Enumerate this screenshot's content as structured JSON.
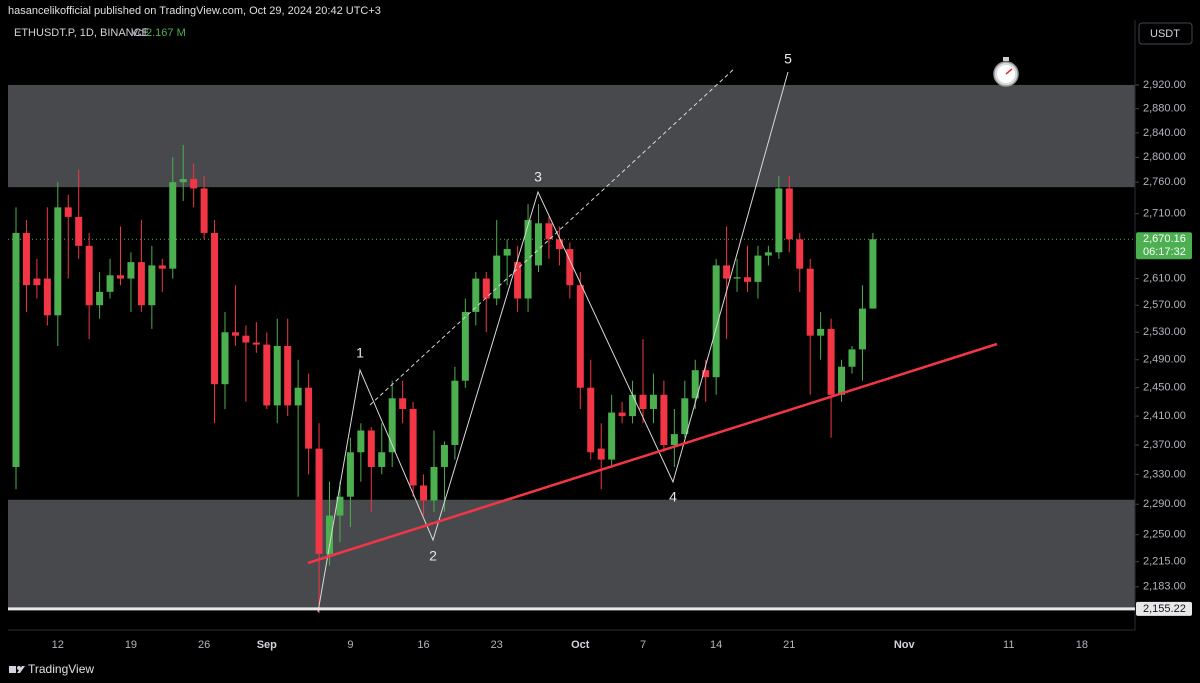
{
  "chart_data": {
    "type": "candlestick",
    "header": "hasancelikofficial published on TradingView.com, Oct 29, 2024 20:42 UTC+3",
    "symbol": "ETHUSDT.P, 1D, BINANCE",
    "vol_label": "Vol",
    "vol_value": "2.167 M",
    "currency": "USDT",
    "brand": "TradingView",
    "log_scale": true,
    "up_color": "#4caf50",
    "down_color": "#f23645",
    "ylim": [
      2129,
      3032
    ],
    "yticks": [
      {
        "value": 2920,
        "label": "2,920.00"
      },
      {
        "value": 2880,
        "label": "2,880.00"
      },
      {
        "value": 2840,
        "label": "2,840.00"
      },
      {
        "value": 2800,
        "label": "2,800.00"
      },
      {
        "value": 2760,
        "label": "2,760.00"
      },
      {
        "value": 2710,
        "label": "2,710.00"
      },
      {
        "value": 2610,
        "label": "2,610.00"
      },
      {
        "value": 2570,
        "label": "2,570.00"
      },
      {
        "value": 2530,
        "label": "2,530.00"
      },
      {
        "value": 2490,
        "label": "2,490.00"
      },
      {
        "value": 2450,
        "label": "2,450.00"
      },
      {
        "value": 2410,
        "label": "2,410.00"
      },
      {
        "value": 2370,
        "label": "2,370.00"
      },
      {
        "value": 2330,
        "label": "2,330.00"
      },
      {
        "value": 2290,
        "label": "2,290.00"
      },
      {
        "value": 2250,
        "label": "2,250.00"
      },
      {
        "value": 2215,
        "label": "2,215.00"
      },
      {
        "value": 2183,
        "label": "2,183.00"
      }
    ],
    "zones": [
      {
        "from": 2752,
        "to": 2920
      },
      {
        "from": 2157,
        "to": 2296
      }
    ],
    "last_price": {
      "value": 2670.16,
      "label": "2,670.16"
    },
    "countdown": "06:17:32",
    "low_price": {
      "value": 2155.22,
      "label": "2,155.22"
    },
    "wave_labels": [
      "1",
      "2",
      "3",
      "4",
      "5"
    ],
    "categories": [
      null,
      null,
      null,
      null,
      "12",
      null,
      null,
      null,
      null,
      null,
      null,
      "19",
      null,
      null,
      null,
      null,
      null,
      null,
      "26",
      null,
      null,
      null,
      null,
      null,
      "Sep",
      null,
      null,
      null,
      null,
      null,
      null,
      null,
      "9",
      null,
      null,
      null,
      null,
      null,
      null,
      "16",
      null,
      null,
      null,
      null,
      null,
      null,
      "23",
      null,
      null,
      null,
      null,
      null,
      null,
      null,
      "Oct",
      null,
      null,
      null,
      null,
      null,
      "7",
      null,
      null,
      null,
      null,
      null,
      null,
      "14",
      null,
      null,
      null,
      null,
      null,
      null,
      "21",
      null,
      null,
      null,
      null,
      null,
      null,
      null,
      null,
      null,
      null,
      "Nov",
      null,
      null,
      null,
      null,
      null,
      null,
      null,
      null,
      null,
      "11",
      null,
      null,
      null,
      null,
      null,
      null,
      "18"
    ],
    "open": [
      2340,
      2680,
      2610,
      2610,
      2555,
      2720,
      2705,
      2660,
      2570,
      2590,
      2615,
      2610,
      2635,
      2570,
      2630,
      2625,
      2760,
      2765,
      2750,
      2680,
      2455,
      2530,
      2525,
      2515,
      2512,
      2425,
      2510,
      2425,
      2450,
      2365,
      2225,
      2275,
      2300,
      2360,
      2390,
      2340,
      2360,
      2435,
      2420,
      2315,
      2295,
      2340,
      2370,
      2460,
      2560,
      2610,
      2580,
      2645,
      2635,
      2580,
      2630,
      2695,
      2670,
      2655,
      2600,
      2450,
      2365,
      2350,
      2415,
      2410,
      2440,
      2420,
      2440,
      2370,
      2385,
      2435,
      2475,
      2465,
      2630,
      2610,
      2612,
      2605,
      2645,
      2650,
      2750,
      2670,
      2625,
      2525,
      2535,
      2440,
      2480,
      2505,
      2565,
      null,
      null,
      null,
      null,
      null,
      null,
      null,
      null,
      null,
      null,
      null,
      null,
      null,
      null,
      null,
      null,
      null,
      null,
      null,
      null
    ],
    "high": [
      2720,
      2700,
      2640,
      2720,
      2760,
      2740,
      2780,
      2680,
      2620,
      2640,
      2690,
      2650,
      2700,
      2660,
      2640,
      2800,
      2820,
      2790,
      2770,
      2700,
      2560,
      2600,
      2540,
      2545,
      2530,
      2550,
      2550,
      2490,
      2470,
      2400,
      2320,
      2320,
      2380,
      2400,
      2395,
      2400,
      2460,
      2460,
      2430,
      2330,
      2390,
      2375,
      2480,
      2580,
      2620,
      2620,
      2700,
      2670,
      2660,
      2725,
      2725,
      2705,
      2690,
      2665,
      2620,
      2490,
      2400,
      2440,
      2430,
      2460,
      2520,
      2470,
      2460,
      2420,
      2460,
      2490,
      2490,
      2640,
      2690,
      2640,
      2660,
      2660,
      2660,
      2770,
      2770,
      2680,
      2640,
      2560,
      2550,
      2490,
      2510,
      2600,
      2680,
      null,
      null,
      null,
      null,
      null,
      null,
      null,
      null,
      null,
      null,
      null,
      null,
      null,
      null,
      null,
      null,
      null,
      null,
      null,
      null
    ],
    "low": [
      2310,
      2560,
      2580,
      2540,
      2510,
      2610,
      2640,
      2520,
      2550,
      2580,
      2600,
      2560,
      2560,
      2535,
      2590,
      2610,
      2730,
      2720,
      2670,
      2400,
      2420,
      2510,
      2430,
      2500,
      2420,
      2400,
      2410,
      2300,
      2330,
      2150,
      2210,
      2240,
      2260,
      2320,
      2280,
      2330,
      2340,
      2400,
      2300,
      2275,
      2280,
      2280,
      2350,
      2450,
      2540,
      2530,
      2570,
      2600,
      2560,
      2560,
      2620,
      2640,
      2630,
      2580,
      2420,
      2350,
      2310,
      2340,
      2400,
      2400,
      2400,
      2400,
      2360,
      2340,
      2380,
      2420,
      2430,
      2440,
      2520,
      2590,
      2590,
      2580,
      2630,
      2640,
      2650,
      2590,
      2440,
      2490,
      2380,
      2430,
      2470,
      2460,
      2565,
      null,
      null,
      null,
      null,
      null,
      null,
      null,
      null,
      null,
      null,
      null,
      null,
      null,
      null,
      null,
      null,
      null,
      null,
      null,
      null
    ],
    "close": [
      2680,
      2600,
      2600,
      2555,
      2720,
      2705,
      2660,
      2570,
      2590,
      2615,
      2610,
      2635,
      2570,
      2630,
      2625,
      2760,
      2765,
      2750,
      2680,
      2455,
      2530,
      2525,
      2515,
      2512,
      2425,
      2510,
      2425,
      2450,
      2365,
      2225,
      2275,
      2300,
      2360,
      2390,
      2340,
      2360,
      2435,
      2420,
      2315,
      2295,
      2340,
      2370,
      2460,
      2560,
      2610,
      2580,
      2645,
      2655,
      2580,
      2700,
      2695,
      2670,
      2655,
      2600,
      2450,
      2360,
      2350,
      2415,
      2410,
      2440,
      2420,
      2440,
      2370,
      2385,
      2435,
      2475,
      2465,
      2630,
      2610,
      2612,
      2605,
      2645,
      2650,
      2750,
      2670,
      2625,
      2525,
      2535,
      2440,
      2480,
      2505,
      2565,
      2670.16,
      null,
      null,
      null,
      null,
      null,
      null,
      null,
      null,
      null,
      null,
      null,
      null,
      null,
      null,
      null,
      null,
      null,
      null,
      null,
      null
    ]
  }
}
